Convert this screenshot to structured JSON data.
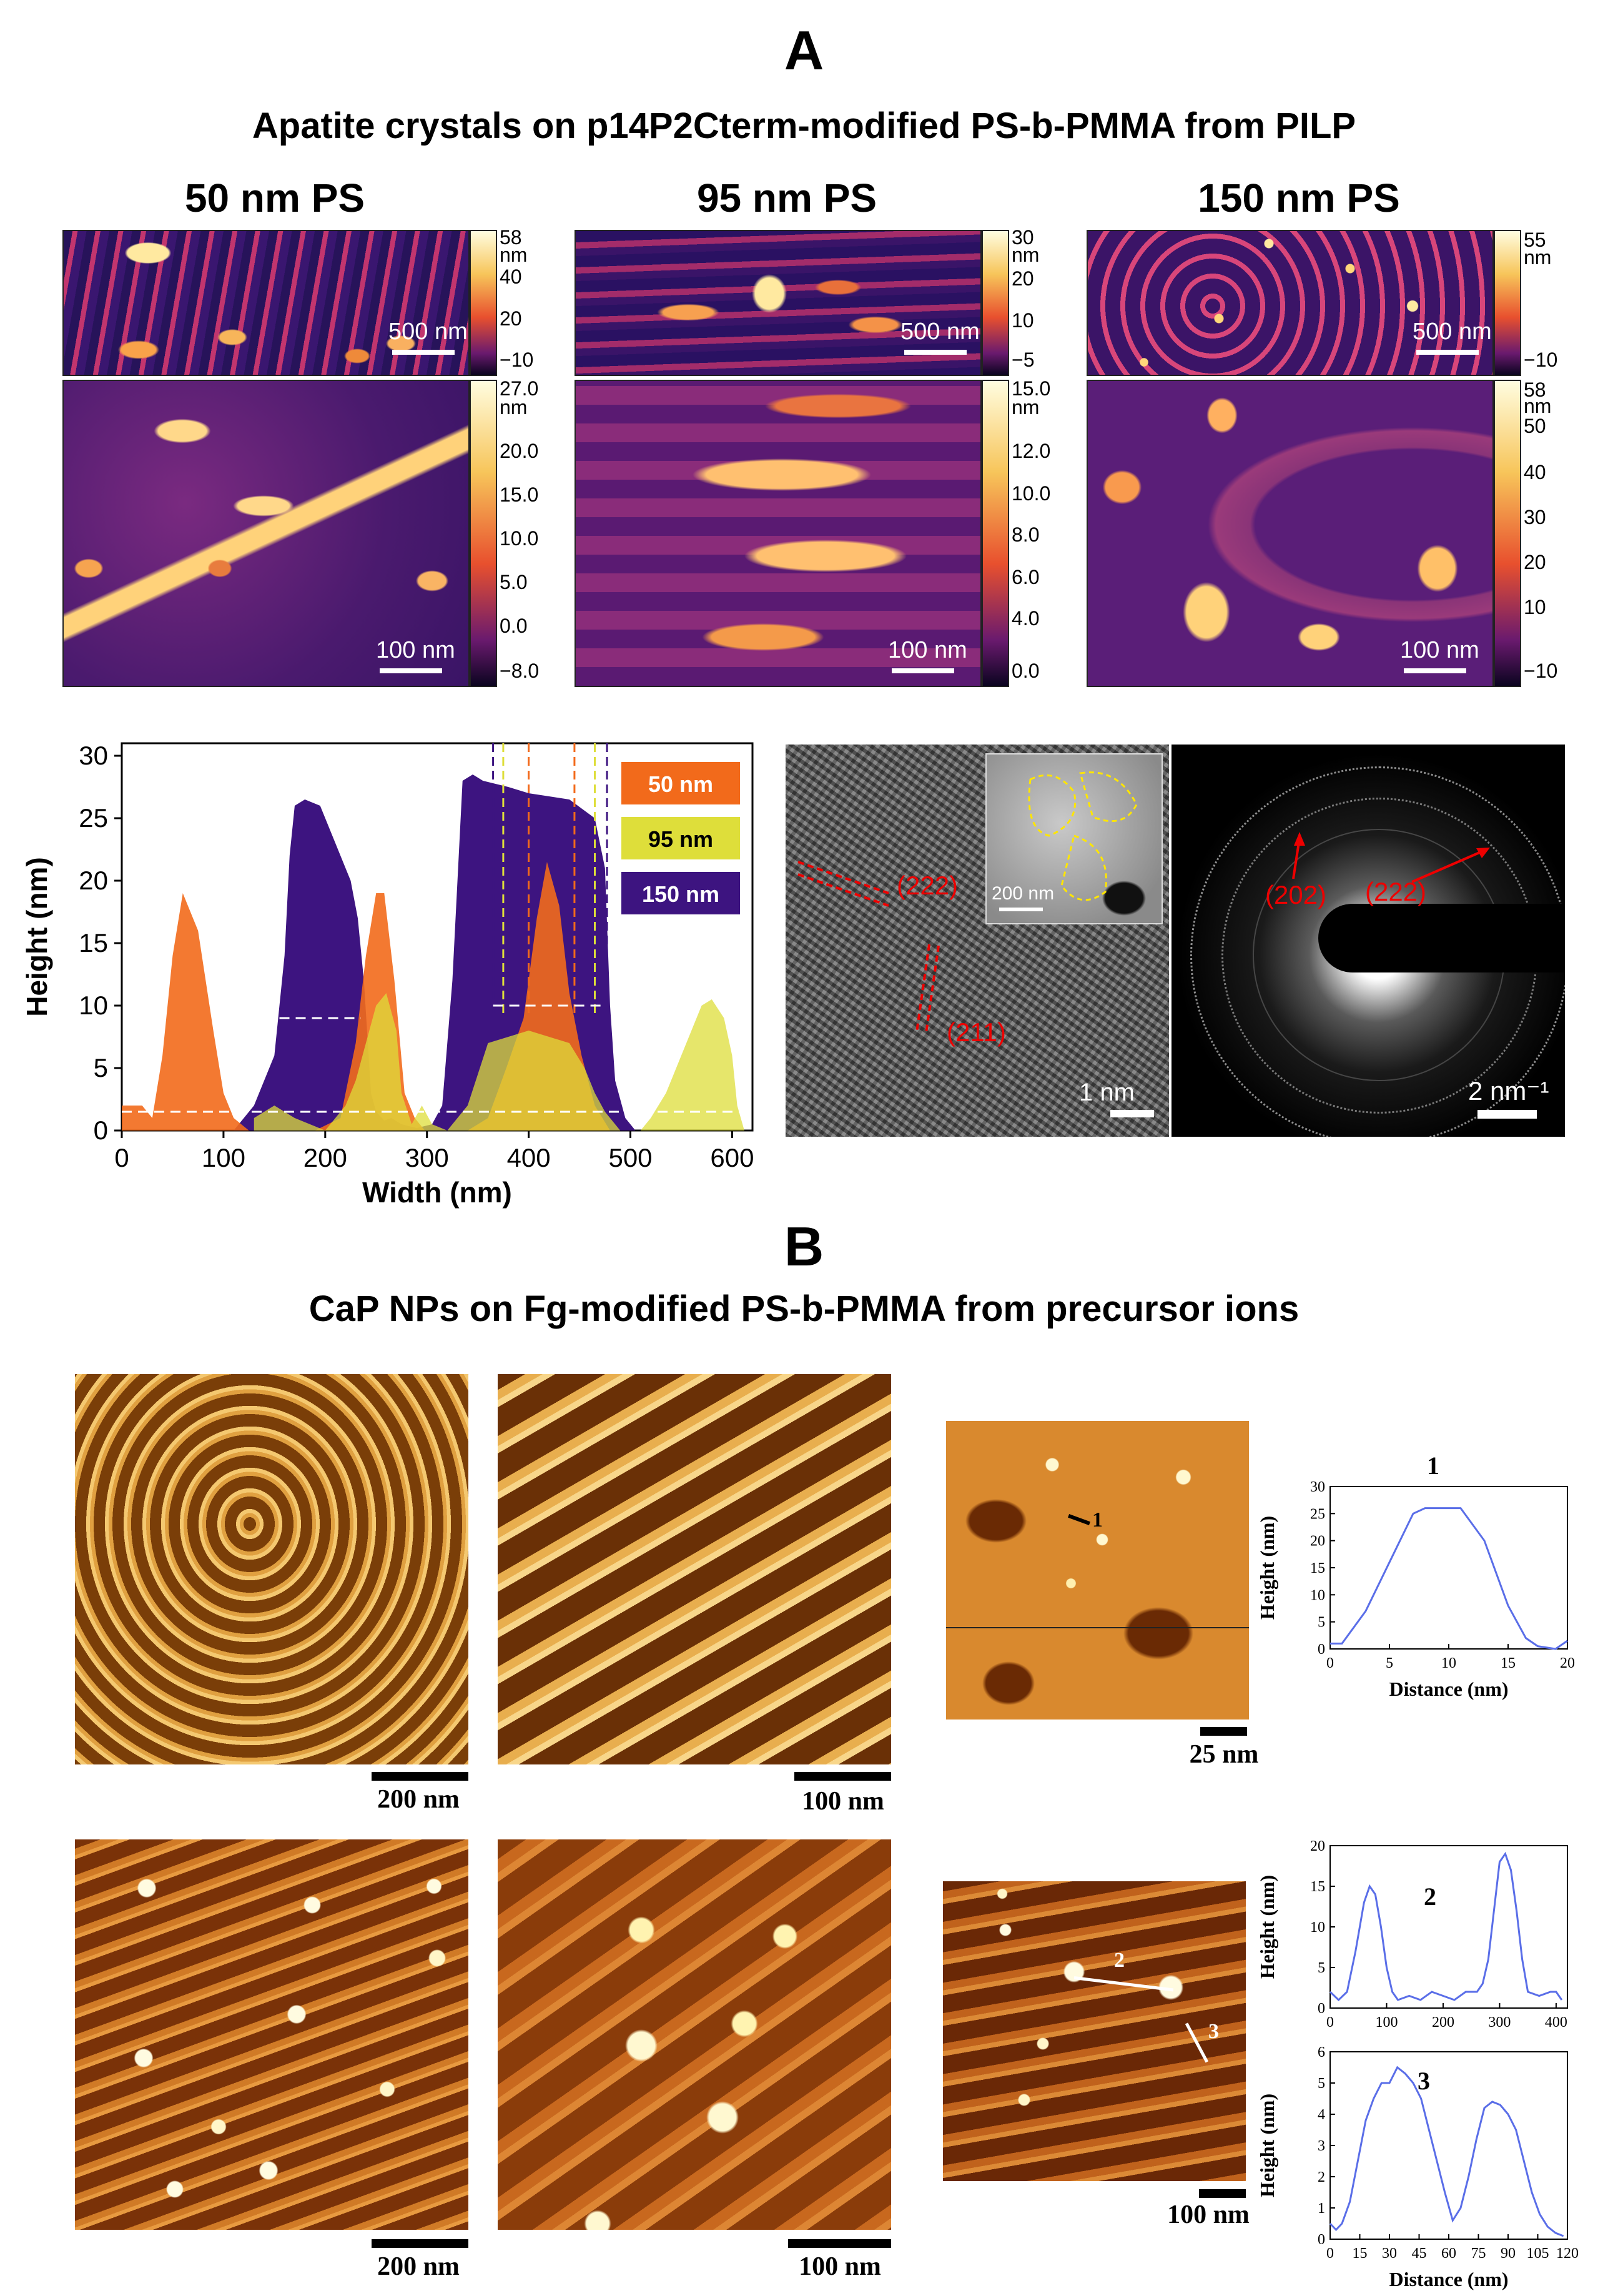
{
  "panel_a": {
    "letter": "A",
    "title": "Apatite crystals on p14P2Cterm-modified PS-b-PMMA from PILP",
    "columns": [
      {
        "title": "50 nm PS",
        "top_scale": "500 nm",
        "top_cbar": [
          "58",
          "nm",
          "40",
          "20",
          "−10"
        ],
        "bottom_scale": "100 nm",
        "bottom_cbar": [
          "27.0",
          "nm",
          "20.0",
          "15.0",
          "10.0",
          "5.0",
          "0.0",
          "−8.0"
        ]
      },
      {
        "title": "95 nm PS",
        "top_scale": "500 nm",
        "top_cbar": [
          "30",
          "nm",
          "20",
          "10",
          "−5"
        ],
        "bottom_scale": "100 nm",
        "bottom_cbar": [
          "15.0",
          "nm",
          "12.0",
          "10.0",
          "8.0",
          "6.0",
          "4.0",
          "0.0"
        ]
      },
      {
        "title": "150 nm PS",
        "top_scale": "500 nm",
        "top_cbar": [
          "55",
          "nm",
          "−10"
        ],
        "bottom_scale": "100 nm",
        "bottom_cbar": [
          "58",
          "nm",
          "50",
          "40",
          "30",
          "20",
          "10",
          "−10"
        ]
      }
    ],
    "tem": {
      "hrtem_labels": [
        "(222)",
        "(211)"
      ],
      "inset_scale": "200 nm",
      "hrtem_scale": "1 nm",
      "saed_labels": [
        "(202)",
        "(222)"
      ],
      "saed_scale": "2 nm⁻¹"
    }
  },
  "panel_b": {
    "letter": "B",
    "title": "CaP NPs on Fg-modified PS-b-PMMA from precursor ions",
    "scales": [
      "200 nm",
      "100 nm",
      "25 nm",
      "200 nm",
      "100 nm",
      "100 nm"
    ],
    "markers": [
      "1",
      "2",
      "3"
    ]
  },
  "chart_data": [
    {
      "type": "area",
      "title": "",
      "xlabel": "Width (nm)",
      "ylabel": "Height (nm)",
      "xlim": [
        0,
        620
      ],
      "ylim": [
        0,
        31
      ],
      "xticks": [
        0,
        100,
        200,
        300,
        400,
        500,
        600
      ],
      "yticks": [
        0,
        5,
        10,
        15,
        20,
        25,
        30
      ],
      "legend": [
        "50 nm",
        "95 nm",
        "150 nm"
      ],
      "colors": {
        "50 nm": "#f26a1b",
        "95 nm": "#dede3a",
        "150 nm": "#3d1480"
      },
      "series": [
        {
          "name": "150 nm",
          "x": [
            110,
            130,
            150,
            160,
            165,
            170,
            180,
            195,
            205,
            215,
            225,
            232,
            238,
            245,
            250,
            258,
            265,
            275,
            290,
            305,
            315,
            325,
            335,
            345,
            355,
            380,
            400,
            440,
            465,
            475,
            480,
            485,
            495,
            505
          ],
          "y": [
            0,
            2,
            6,
            14,
            22,
            26,
            26.5,
            26,
            24,
            22,
            20,
            17,
            12,
            3,
            1.5,
            0.8,
            1,
            0.5,
            0.2,
            0.5,
            2,
            12,
            28,
            28.5,
            28,
            27.5,
            27,
            26.5,
            25,
            21,
            10,
            4,
            1,
            0
          ]
        },
        {
          "name": "50 nm",
          "x": [
            0,
            20,
            30,
            40,
            50,
            60,
            75,
            90,
            100,
            110,
            125,
            190,
            215,
            230,
            240,
            250,
            258,
            268,
            278,
            288,
            298,
            340,
            360,
            378,
            395,
            408,
            418,
            430,
            440,
            452,
            465,
            480
          ],
          "y": [
            2,
            2,
            1,
            6,
            14,
            19,
            16,
            8,
            3,
            1,
            0,
            0,
            1,
            7,
            14,
            19,
            19,
            12,
            3,
            1,
            0,
            0,
            1,
            5,
            9,
            17,
            21.5,
            18,
            11,
            6,
            2,
            0
          ]
        },
        {
          "name": "95 nm",
          "x": [
            130,
            150,
            170,
            200,
            210,
            220,
            230,
            240,
            250,
            260,
            270,
            275,
            285,
            295,
            305,
            320,
            340,
            360,
            380,
            400,
            420,
            440,
            455,
            465,
            475,
            490,
            510,
            520,
            535,
            545,
            560,
            570,
            580,
            592,
            600,
            605,
            612
          ],
          "y": [
            1,
            2,
            1,
            0,
            1,
            2,
            4,
            7,
            10,
            11,
            8,
            3,
            0.5,
            2,
            0.5,
            0,
            2,
            7,
            7.5,
            8,
            7.5,
            7,
            5,
            3,
            1.5,
            0,
            0,
            1,
            3,
            5,
            8,
            10,
            10.5,
            9,
            6,
            2,
            0
          ]
        }
      ],
      "annotations": {
        "dashed_white_lines_y": [
          1.5,
          9,
          10
        ],
        "dashed_vertical_x": [
          365,
          375,
          400,
          445,
          465,
          477
        ]
      }
    },
    {
      "type": "line",
      "title": "1",
      "xlabel": "Distance (nm)",
      "ylabel": "Height (nm)",
      "xlim": [
        0,
        20
      ],
      "ylim": [
        0,
        30
      ],
      "xticks": [
        0,
        5,
        10,
        15,
        20
      ],
      "yticks": [
        0,
        5,
        10,
        15,
        20,
        25,
        30
      ],
      "x": [
        0,
        1,
        3,
        5,
        7,
        8,
        11,
        13,
        15,
        16.5,
        17.5,
        19,
        20
      ],
      "y": [
        1,
        1,
        7,
        16,
        25,
        26,
        26,
        20,
        8,
        2,
        0.5,
        0,
        1.5
      ]
    },
    {
      "type": "line",
      "title": "2",
      "xlabel": "",
      "ylabel": "Height (nm)",
      "xlim": [
        0,
        420
      ],
      "ylim": [
        0,
        20
      ],
      "xticks": [
        0,
        100,
        200,
        300,
        400
      ],
      "yticks": [
        0,
        5,
        10,
        15,
        20
      ],
      "x": [
        0,
        15,
        30,
        45,
        60,
        70,
        80,
        90,
        100,
        110,
        120,
        140,
        160,
        180,
        200,
        220,
        240,
        260,
        270,
        280,
        290,
        300,
        310,
        320,
        330,
        340,
        350,
        370,
        390,
        400,
        410
      ],
      "y": [
        2,
        1,
        2,
        7,
        13,
        15,
        14,
        10,
        5,
        2,
        1,
        1.5,
        1,
        2,
        1.5,
        1,
        2,
        2,
        3,
        6,
        12,
        18,
        19,
        17,
        12,
        6,
        2,
        1.5,
        2,
        2,
        1
      ]
    },
    {
      "type": "line",
      "title": "3",
      "xlabel": "Distance (nm)",
      "ylabel": "Height (nm)",
      "xlim": [
        0,
        120
      ],
      "ylim": [
        0,
        6
      ],
      "xticks": [
        0,
        15,
        30,
        45,
        60,
        75,
        90,
        105,
        120
      ],
      "yticks": [
        0,
        1,
        2,
        3,
        4,
        5,
        6
      ],
      "x": [
        0,
        3,
        6,
        10,
        14,
        18,
        22,
        26,
        30,
        34,
        38,
        42,
        46,
        50,
        54,
        58,
        62,
        66,
        70,
        74,
        78,
        82,
        86,
        90,
        94,
        98,
        102,
        106,
        110,
        114,
        118
      ],
      "y": [
        0.5,
        0.3,
        0.5,
        1.2,
        2.5,
        3.8,
        4.5,
        5,
        5,
        5.5,
        5.3,
        5,
        4.5,
        3.5,
        2.5,
        1.5,
        0.6,
        1,
        2,
        3.2,
        4.2,
        4.4,
        4.3,
        4,
        3.5,
        2.5,
        1.5,
        0.8,
        0.4,
        0.2,
        0.1
      ]
    }
  ]
}
